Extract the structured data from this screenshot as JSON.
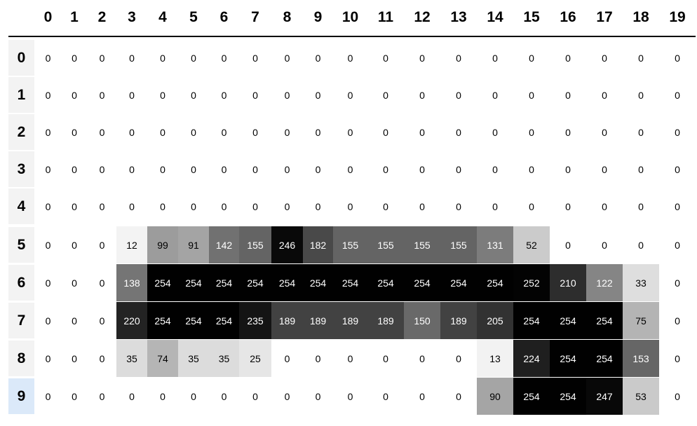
{
  "columns": [
    "0",
    "1",
    "2",
    "3",
    "4",
    "5",
    "6",
    "7",
    "8",
    "9",
    "10",
    "11",
    "12",
    "13",
    "14",
    "15",
    "16",
    "17",
    "18",
    "19"
  ],
  "rows": [
    {
      "label": "0",
      "selected": false,
      "values": [
        0,
        0,
        0,
        0,
        0,
        0,
        0,
        0,
        0,
        0,
        0,
        0,
        0,
        0,
        0,
        0,
        0,
        0,
        0,
        0
      ]
    },
    {
      "label": "1",
      "selected": false,
      "values": [
        0,
        0,
        0,
        0,
        0,
        0,
        0,
        0,
        0,
        0,
        0,
        0,
        0,
        0,
        0,
        0,
        0,
        0,
        0,
        0
      ]
    },
    {
      "label": "2",
      "selected": false,
      "values": [
        0,
        0,
        0,
        0,
        0,
        0,
        0,
        0,
        0,
        0,
        0,
        0,
        0,
        0,
        0,
        0,
        0,
        0,
        0,
        0
      ]
    },
    {
      "label": "3",
      "selected": false,
      "values": [
        0,
        0,
        0,
        0,
        0,
        0,
        0,
        0,
        0,
        0,
        0,
        0,
        0,
        0,
        0,
        0,
        0,
        0,
        0,
        0
      ]
    },
    {
      "label": "4",
      "selected": false,
      "values": [
        0,
        0,
        0,
        0,
        0,
        0,
        0,
        0,
        0,
        0,
        0,
        0,
        0,
        0,
        0,
        0,
        0,
        0,
        0,
        0
      ]
    },
    {
      "label": "5",
      "selected": false,
      "values": [
        0,
        0,
        0,
        12,
        99,
        91,
        142,
        155,
        246,
        182,
        155,
        155,
        155,
        155,
        131,
        52,
        0,
        0,
        0,
        0
      ]
    },
    {
      "label": "6",
      "selected": false,
      "values": [
        0,
        0,
        0,
        138,
        254,
        254,
        254,
        254,
        254,
        254,
        254,
        254,
        254,
        254,
        254,
        252,
        210,
        122,
        33,
        0
      ]
    },
    {
      "label": "7",
      "selected": false,
      "values": [
        0,
        0,
        0,
        220,
        254,
        254,
        254,
        235,
        189,
        189,
        189,
        189,
        150,
        189,
        205,
        254,
        254,
        254,
        75,
        0
      ]
    },
    {
      "label": "8",
      "selected": false,
      "values": [
        0,
        0,
        0,
        35,
        74,
        35,
        35,
        25,
        0,
        0,
        0,
        0,
        0,
        0,
        13,
        224,
        254,
        254,
        153,
        0
      ]
    },
    {
      "label": "9",
      "selected": true,
      "values": [
        0,
        0,
        0,
        0,
        0,
        0,
        0,
        0,
        0,
        0,
        0,
        0,
        0,
        0,
        90,
        254,
        254,
        247,
        53,
        0
      ]
    }
  ],
  "colors": {
    "row_header_bg": "#f3f3f3",
    "row_header_selected_bg": "#dbe9f9",
    "cell_low": "#ffffff",
    "cell_high": "#000000"
  }
}
